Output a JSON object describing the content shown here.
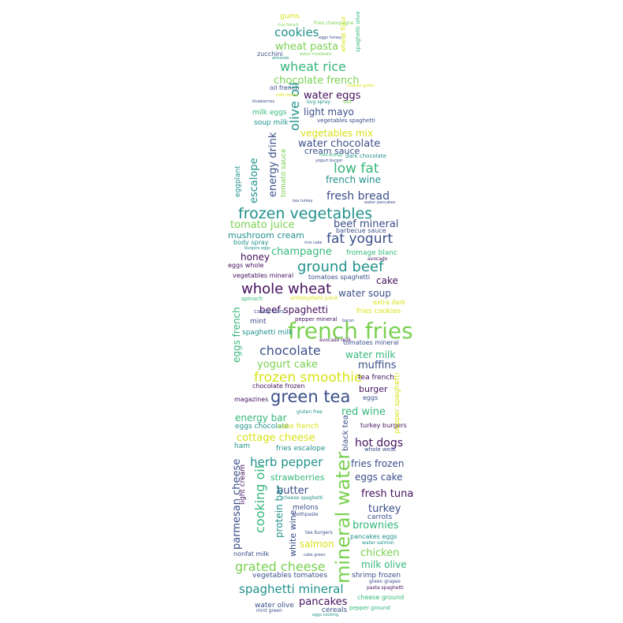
{
  "palette": {
    "purple": "#44105e",
    "indigo": "#3b4f8a",
    "teal": "#21918c",
    "green": "#35b779",
    "lime": "#7ad151",
    "yellow": "#d8e219"
  },
  "words": [
    "gums",
    "fries champagne",
    "rice french",
    "eggs honey",
    "wheat flour",
    "spaghetti olive",
    "cookies",
    "wheat pasta",
    "zucchini",
    "water meatballs",
    "almonds",
    "cookies green",
    "wheat rice",
    "chocolate french",
    "oil french",
    "olive oil",
    "water eggs",
    "milk honey",
    "bug spray",
    "salt",
    "blueberries",
    "light mayo",
    "milk eggs",
    "soup milk",
    "vegetables spaghetti",
    "vegetables mix",
    "water chocolate",
    "cream sauce",
    "milk energy",
    "dark chocolate",
    "yogurt burger",
    "energy drink",
    "escalope",
    "eggplant",
    "tomato sauce",
    "low fat",
    "french wine",
    "fresh bread",
    "water pancakes",
    "tea turkey",
    "frozen vegetables",
    "tomato juice",
    "beef mineral",
    "mushroom cream",
    "barbecue sauce",
    "fat yogurt",
    "body spray",
    "burgers eggs",
    "rice cake",
    "champagne",
    "fromage blanc",
    "honey",
    "avocado",
    "eggs whole",
    "ground beef",
    "vegetables mineral",
    "tomatoes spaghetti",
    "cake",
    "whole wheat",
    "water soup",
    "spinach",
    "antioxydant juice",
    "extra dark",
    "beef spaghetti",
    "fries cookies",
    "candy bars",
    "pepper mineral",
    "bacon",
    "mint",
    "french fries",
    "spaghetti milk",
    "avocado milk",
    "tomatoes mineral",
    "chocolate",
    "water milk",
    "eggs french",
    "yogurt cake",
    "muffins",
    "frozen smoothie",
    "tea french",
    "chocolate frozen",
    "burger",
    "green tea",
    "energy bar",
    "eggs",
    "magazines",
    "gluten free",
    "red wine",
    "eggs chocolate",
    "cake french",
    "turkey burgers",
    "pepper spaghetti",
    "cottage cheese",
    "black tea",
    "hot dogs",
    "ham",
    "whole weat",
    "fries escalope",
    "herb pepper",
    "fries frozen",
    "strawberries",
    "eggs cake",
    "parmesan cheese",
    "cooking oil",
    "mineral water",
    "butter",
    "fresh tuna",
    "cheese spaghetti",
    "melons",
    "turkey",
    "toothpaste",
    "carrots",
    "protein bar",
    "white wine",
    "brownies",
    "pancakes eggs",
    "water salmon",
    "salmon",
    "chicken",
    "tea burgers",
    "grated cheese",
    "milk olive",
    "nonfat milk",
    "cake green",
    "shrimp frozen",
    "vegetables tomatoes",
    "green grapes",
    "spaghetti mineral",
    "pasta spaghetti",
    "cheese ground",
    "pancakes",
    "water olive",
    "cereals",
    "pepper ground",
    "mint green",
    "eggs cooking",
    "light cream"
  ]
}
